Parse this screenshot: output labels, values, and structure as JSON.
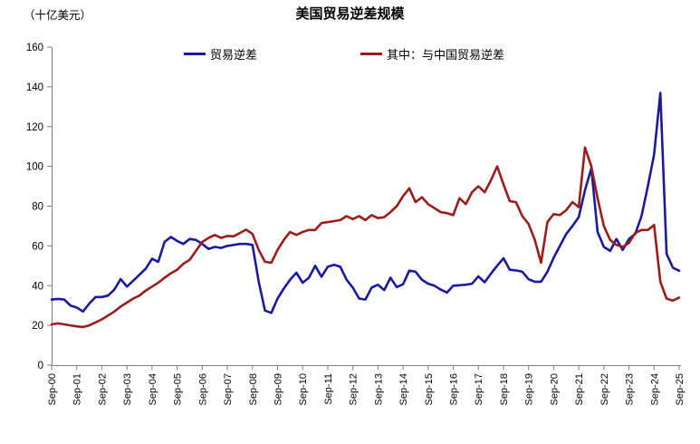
{
  "header": {
    "title": "美国贸易逆差规模",
    "unit_label": "（十亿美元）"
  },
  "legend": [
    {
      "label": "贸易逆差",
      "color": "#1a1aa0"
    },
    {
      "label": "其中：与中国贸易逆差",
      "color": "#9c1c1c"
    }
  ],
  "colors": {
    "axis": "#7f7f7f",
    "tick_text": "#000000"
  },
  "chart_data": {
    "type": "line",
    "title": "美国贸易逆差规模",
    "ylabel": "（十亿美元）",
    "xlabel": "",
    "frequency": "quarterly",
    "x_start": "Sep-00",
    "x_end": "Sep-25",
    "ylim": [
      0,
      160
    ],
    "yticks": [
      0,
      20,
      40,
      60,
      80,
      100,
      120,
      140,
      160
    ],
    "grid": false,
    "legend_position": "top",
    "xtick_labels": [
      "Sep-00",
      "Sep-01",
      "Sep-02",
      "Sep-03",
      "Sep-04",
      "Sep-05",
      "Sep-06",
      "Sep-07",
      "Sep-08",
      "Sep-09",
      "Sep-10",
      "Sep-11",
      "Sep-12",
      "Sep-13",
      "Sep-14",
      "Sep-15",
      "Sep-16",
      "Sep-17",
      "Sep-18",
      "Sep-19",
      "Sep-20",
      "Sep-21",
      "Sep-22",
      "Sep-23",
      "Sep-24",
      "Sep-25"
    ],
    "series": [
      {
        "name": "贸易逆差",
        "color": "#1a1aa0",
        "values": [
          33,
          33.3,
          33,
          30,
          29,
          27,
          31,
          34.3,
          34.3,
          35,
          38,
          43.3,
          39.5,
          42.5,
          45.5,
          48.5,
          53.5,
          52,
          62,
          64.5,
          62.5,
          61,
          63.5,
          63,
          61,
          58.5,
          59.5,
          59,
          60,
          60.5,
          61,
          61,
          60.5,
          42,
          27.5,
          26.3,
          33.5,
          38.5,
          43,
          46.5,
          41.5,
          44,
          50,
          44.5,
          49.5,
          50.5,
          49.5,
          43,
          39,
          33.5,
          33,
          39,
          40.5,
          37.8,
          44,
          39.3,
          40.7,
          47.6,
          47,
          43,
          41,
          40,
          38,
          36.5,
          40,
          40.2,
          40.5,
          41,
          44.7,
          41.7,
          46,
          50,
          53.8,
          48,
          47.7,
          47,
          43.2,
          42,
          42,
          47,
          54,
          60,
          66,
          70,
          74.5,
          88,
          99,
          67,
          59.5,
          57.5,
          63.5,
          58,
          63.5,
          66,
          75,
          90,
          106,
          137,
          56,
          49,
          47.5
        ]
      },
      {
        "name": "其中：与中国贸易逆差",
        "color": "#9c1c1c",
        "values": [
          20.5,
          21,
          20.5,
          20,
          19.5,
          19.2,
          20,
          21.5,
          23,
          25,
          27,
          29.5,
          31.5,
          33.5,
          35,
          37.5,
          39.5,
          41.5,
          44,
          46.2,
          48,
          51,
          53,
          57.5,
          62,
          64,
          65.5,
          64,
          65,
          64.8,
          66.5,
          68.2,
          66,
          58,
          52,
          51.5,
          58,
          63,
          67,
          65.5,
          67,
          68,
          68,
          71.5,
          72,
          72.5,
          73,
          75,
          73.5,
          75,
          73,
          75.5,
          74,
          74.5,
          77,
          80,
          85,
          89,
          82,
          84.5,
          81,
          79,
          77,
          76.5,
          75.5,
          84,
          81,
          87,
          90,
          87,
          93,
          100,
          91,
          82.5,
          82,
          75,
          71,
          63,
          51.5,
          72,
          76,
          75.5,
          78,
          82,
          79.5,
          109.5,
          100,
          84,
          70,
          63,
          60.5,
          59.5,
          61.5,
          66.5,
          68,
          68,
          70.5,
          42,
          33.5,
          32.5,
          34
        ]
      }
    ]
  }
}
